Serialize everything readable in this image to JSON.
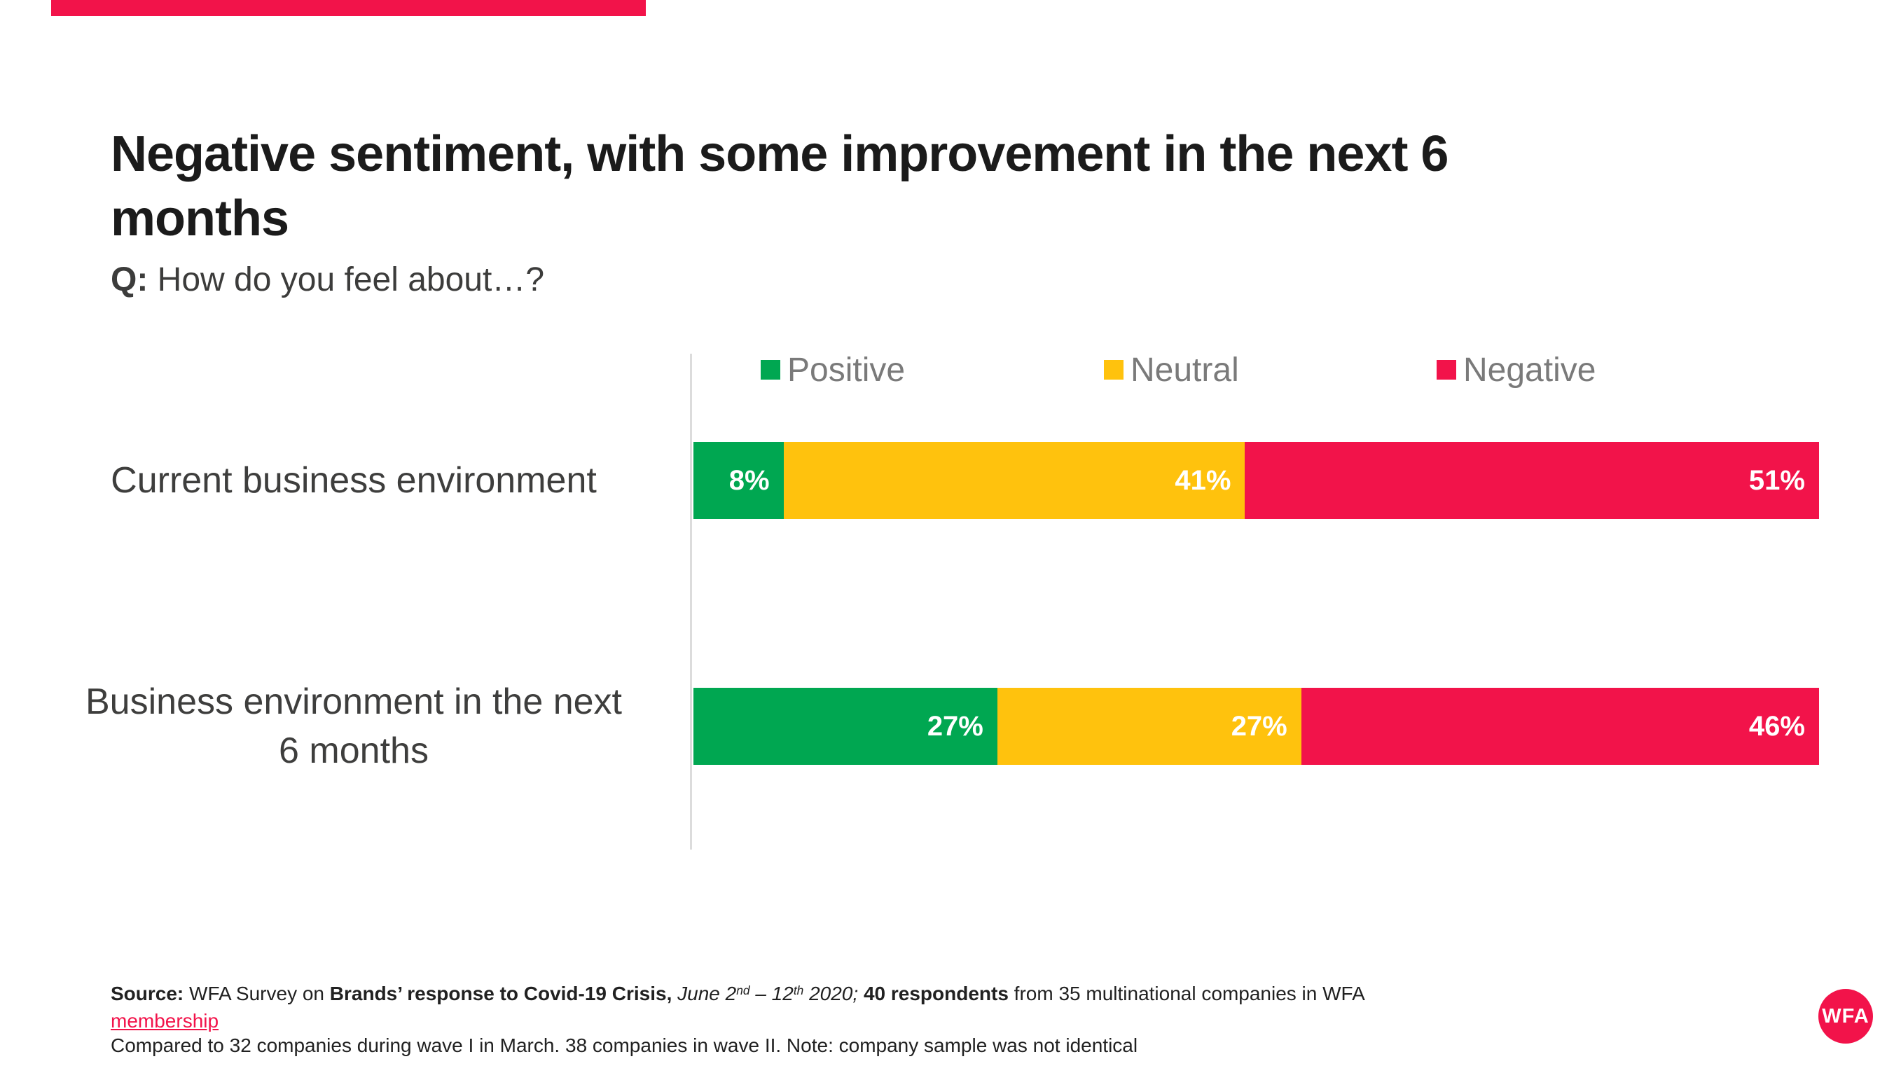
{
  "slide": {
    "title_lines": [
      "Negative sentiment, with some improvement in the next 6",
      "months"
    ],
    "question": {
      "prefix": "Q:",
      "text": " How do you feel about…?"
    }
  },
  "chart_data": {
    "type": "bar",
    "orientation": "horizontal",
    "stacked": true,
    "xlim": [
      0,
      100
    ],
    "value_suffix": "%",
    "legend_position": "top",
    "grid": false,
    "categories": [
      "Current business environment",
      "Business environment in the next 6 months"
    ],
    "category_lines": [
      [
        "Current business environment"
      ],
      [
        "Business environment in the next",
        "6 months"
      ]
    ],
    "series": [
      {
        "name": "Positive",
        "color": "#00A751",
        "values": [
          8,
          27
        ]
      },
      {
        "name": "Neutral",
        "color": "#FFC20D",
        "values": [
          41,
          27
        ]
      },
      {
        "name": "Negative",
        "color": "#F2134A",
        "values": [
          51,
          46
        ]
      }
    ]
  },
  "footer": {
    "line1_runs": [
      {
        "text": "Source:",
        "bold": true
      },
      {
        "text": " WFA Survey on "
      },
      {
        "text": "Brands’ response to Covid-19 Crisis,",
        "bold": true
      },
      {
        "text": " "
      },
      {
        "text": "June 2",
        "italic": true
      },
      {
        "text": "nd",
        "italic": true,
        "sup": true
      },
      {
        "text": " – 12",
        "italic": true
      },
      {
        "text": "th",
        "italic": true,
        "sup": true
      },
      {
        "text": " 2020;",
        "italic": true
      },
      {
        "text": " "
      },
      {
        "text": "40 respondents",
        "bold": true
      },
      {
        "text": " from 35 multinational companies in WFA "
      },
      {
        "text": "membership",
        "link": true
      }
    ],
    "line2": "Compared to 32 companies during wave I in March. 38 companies in wave II. Note: company sample was not identical"
  },
  "logo": {
    "text": "WFA"
  },
  "colors": {
    "accent_red": "#F2134A",
    "positive_green": "#00A751",
    "neutral_amber": "#FFC20D",
    "negative_red": "#F2134A",
    "axis_line": "#DCDCDC",
    "legend_text": "#7A7A7A",
    "title_text": "#1B1B1B",
    "category_text": "#3E3E3D"
  }
}
